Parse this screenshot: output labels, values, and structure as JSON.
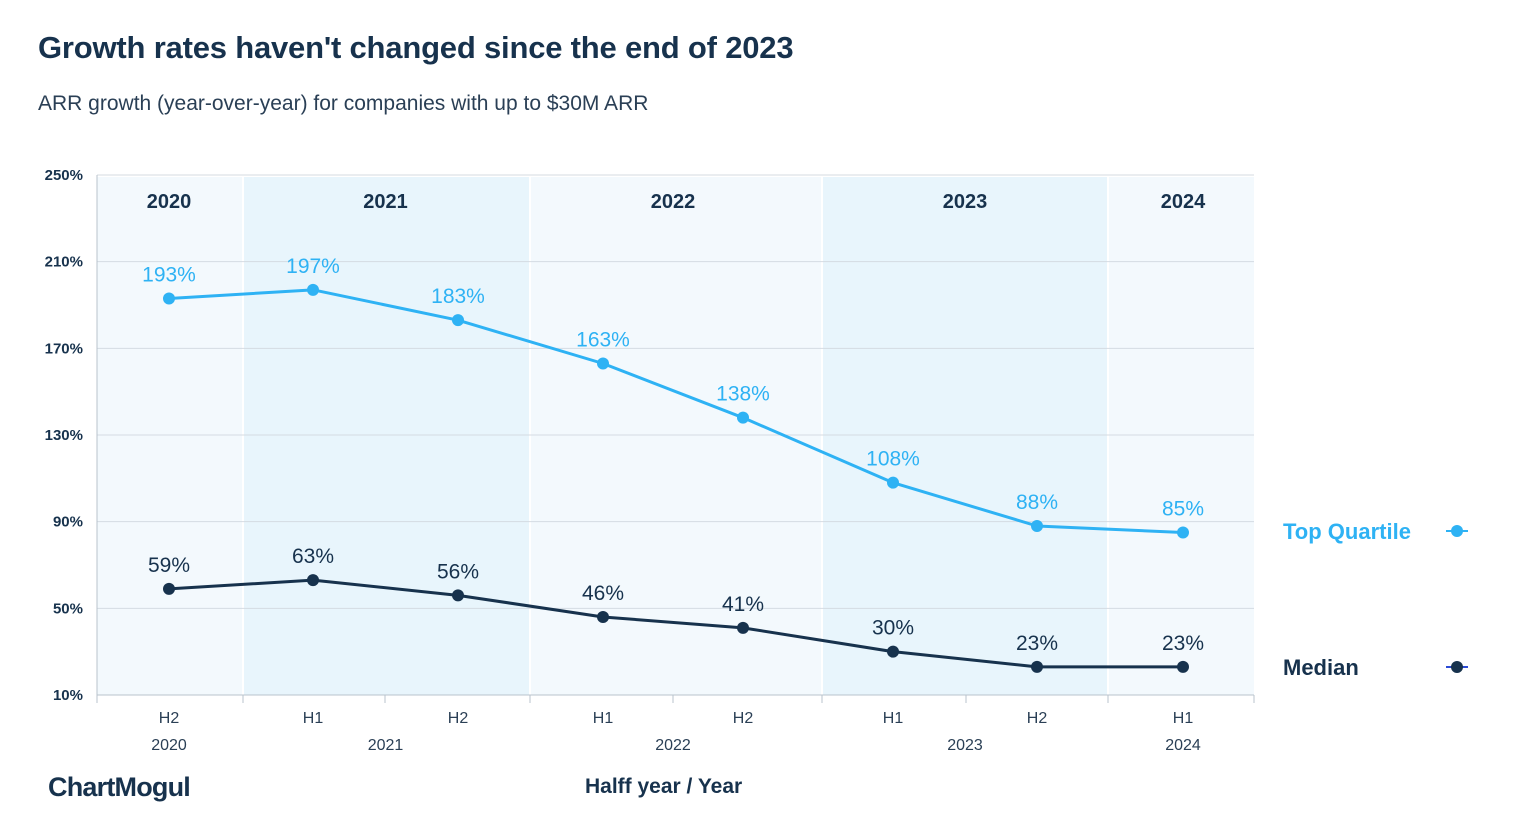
{
  "title": "Growth rates haven't changed since the end of 2023",
  "subtitle": "ARR growth (year-over-year) for companies with up to $30M ARR",
  "logo": "ChartMogul",
  "colors": {
    "top_quartile": "#2eb2f4",
    "median": "#17324d",
    "band_light": "#f3f9fd",
    "band_dark": "#e8f5fc",
    "grid": "#d4dbe2",
    "text": "#17324d"
  },
  "chart_data": {
    "type": "line",
    "title": "Growth rates haven't changed since the end of 2023",
    "subtitle": "ARR growth (year-over-year) for companies with up to $30M ARR",
    "xlabel": "Halff year / Year",
    "ylabel": "",
    "ylim": [
      10,
      250
    ],
    "yticks": [
      "250%",
      "210%",
      "170%",
      "130%",
      "90%",
      "50%",
      "10%"
    ],
    "ytick_values": [
      250,
      210,
      170,
      130,
      90,
      50,
      10
    ],
    "categories": [
      "H2 2020",
      "H1 2021",
      "H2 2021",
      "H1 2022",
      "H2 2022",
      "H1 2023",
      "H2 2023",
      "H1 2024"
    ],
    "halves": [
      "H2",
      "H1",
      "H2",
      "H1",
      "H2",
      "H1",
      "H2",
      "H1"
    ],
    "years": [
      "2020",
      "2021",
      "2022",
      "2023",
      "2024"
    ],
    "year_spans": [
      [
        0,
        0
      ],
      [
        1,
        2
      ],
      [
        3,
        4
      ],
      [
        5,
        6
      ],
      [
        7,
        7
      ]
    ],
    "series": [
      {
        "name": "Top Quartile",
        "values": [
          193,
          197,
          183,
          163,
          138,
          108,
          88,
          85
        ],
        "labels": [
          "193%",
          "197%",
          "183%",
          "163%",
          "138%",
          "108%",
          "88%",
          "85%"
        ]
      },
      {
        "name": "Median",
        "values": [
          59,
          63,
          56,
          46,
          41,
          30,
          23,
          23
        ],
        "labels": [
          "59%",
          "63%",
          "56%",
          "46%",
          "41%",
          "30%",
          "23%",
          "23%"
        ]
      }
    ],
    "legend": "right",
    "grid": true
  }
}
